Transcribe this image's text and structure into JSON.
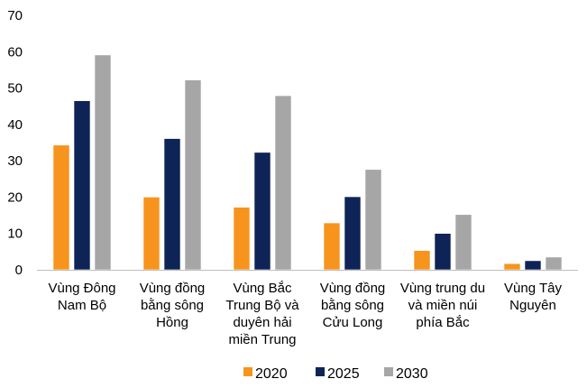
{
  "chart_data": {
    "type": "bar",
    "title": "",
    "xlabel": "",
    "ylabel": "",
    "ylim": [
      0,
      70
    ],
    "yticks": [
      0,
      10,
      20,
      30,
      40,
      50,
      60,
      70
    ],
    "grid": false,
    "legend_position": "bottom",
    "categories": [
      [
        "Vùng Đông",
        "Nam Bộ"
      ],
      [
        "Vùng đồng",
        "bằng sông",
        "Hồng"
      ],
      [
        "Vùng Bắc",
        "Trung Bộ và",
        "duyên hải",
        "miền Trung"
      ],
      [
        "Vùng đồng",
        "bằng sông",
        "Cửu Long"
      ],
      [
        "Vùng trung du",
        "và miền núi",
        "phía Bắc"
      ],
      [
        "Vùng Tây",
        "Nguyên"
      ]
    ],
    "series": [
      {
        "name": "2020",
        "color": "#F7941D",
        "values": [
          34.3,
          20.0,
          17.2,
          12.9,
          5.3,
          1.7
        ]
      },
      {
        "name": "2025",
        "color": "#0E2356",
        "values": [
          46.5,
          36.1,
          32.3,
          20.1,
          10.0,
          2.5
        ]
      },
      {
        "name": "2030",
        "color": "#A6A6A6",
        "values": [
          59.1,
          52.2,
          47.9,
          27.6,
          15.2,
          3.5
        ]
      }
    ]
  }
}
